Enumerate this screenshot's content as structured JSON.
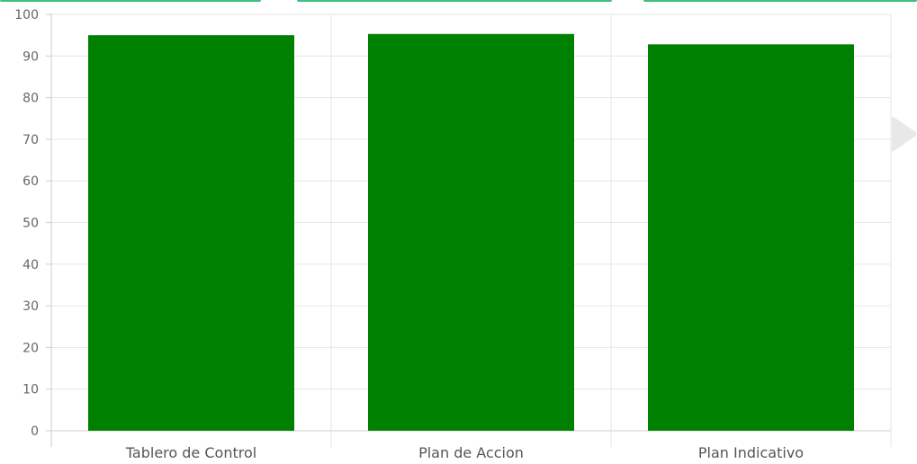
{
  "chart_data": {
    "type": "bar",
    "categories": [
      "Tablero de Control",
      "Plan de Accion",
      "Plan Indicativo"
    ],
    "values": [
      95,
      95.3,
      92.8
    ],
    "yticks": [
      "0",
      "10",
      "20",
      "30",
      "40",
      "50",
      "60",
      "70",
      "80",
      "90",
      "100"
    ],
    "ylim": [
      0,
      100
    ],
    "grid": true,
    "bar_color": "#008000",
    "grid_color": "#e6e6e6",
    "axis_color": "#cccccc"
  },
  "decor": {
    "tab_color": "#3dbf7e",
    "arrow_color": "#e8e8e8"
  }
}
